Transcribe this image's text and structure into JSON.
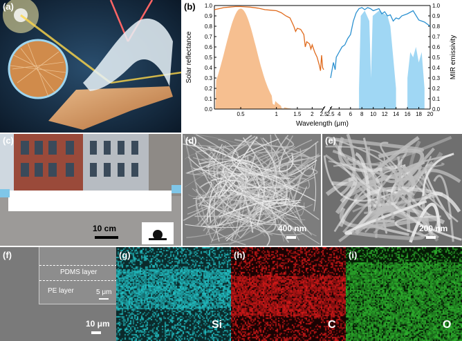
{
  "figure": {
    "panels": {
      "a": {
        "label": "(a)"
      },
      "b": {
        "label": "(b)"
      },
      "c": {
        "label": "(c)",
        "scale_bar": "10 cm"
      },
      "d": {
        "label": "(d)",
        "scale_bar": "400 nm"
      },
      "e": {
        "label": "(e)",
        "scale_bar": "200 nm"
      },
      "f": {
        "label": "(f)",
        "scale_bar": "10 μm",
        "inset": {
          "top_layer": "PDMS layer",
          "bottom_layer": "PE layer",
          "inset_scale": "5 μm"
        }
      },
      "g": {
        "label": "(g)",
        "element": "Si",
        "color": "#23c4c8"
      },
      "h": {
        "label": "(h)",
        "element": "C",
        "color": "#d91a1a"
      },
      "i": {
        "label": "(i)",
        "element": "O",
        "color": "#2fb52f"
      }
    }
  },
  "chart_data": {
    "type": "line",
    "xlabel": "Wavelength (μm)",
    "ylabel_left": "Solar reflectance",
    "ylabel_right": "MIR emissivity",
    "ylim": [
      0,
      1.0
    ],
    "x_ticks_left": [
      "0.5",
      "1",
      "1.5",
      "2",
      "2.5"
    ],
    "x_ticks_right": [
      "2.5",
      "4",
      "6",
      "8",
      "10",
      "12",
      "14",
      "16",
      "18",
      "20"
    ],
    "y_ticks": [
      "0.0",
      "0.1",
      "0.2",
      "0.3",
      "0.4",
      "0.5",
      "0.6",
      "0.7",
      "0.8",
      "0.9",
      "1.0"
    ],
    "colors": {
      "reflectance": "#e06a1c",
      "solar_fill": "#f5b47c",
      "emissivity": "#2a90d0",
      "window_fill": "#8fd0f2"
    },
    "series": [
      {
        "role": "reflectance",
        "x": [
          0.3,
          0.33,
          0.36,
          0.4,
          0.45,
          0.5,
          0.6,
          0.7,
          0.8,
          0.9,
          1.0,
          1.1,
          1.2,
          1.3,
          1.4,
          1.45,
          1.5,
          1.6,
          1.7,
          1.75,
          1.8,
          1.9,
          1.95,
          2.0,
          2.1,
          2.2,
          2.3,
          2.35,
          2.4,
          2.45,
          2.5
        ],
        "y": [
          0.96,
          0.97,
          0.98,
          0.985,
          0.99,
          0.99,
          0.985,
          0.975,
          0.96,
          0.955,
          0.95,
          0.93,
          0.9,
          0.88,
          0.8,
          0.75,
          0.78,
          0.77,
          0.72,
          0.6,
          0.65,
          0.63,
          0.58,
          0.62,
          0.55,
          0.5,
          0.42,
          0.37,
          0.52,
          0.4,
          0.38
        ]
      },
      {
        "role": "emissivity",
        "x": [
          2.5,
          3.0,
          3.3,
          3.5,
          4.0,
          4.5,
          5.0,
          5.5,
          6.0,
          6.5,
          7.0,
          7.5,
          8.0,
          8.5,
          9.0,
          9.5,
          10.0,
          10.5,
          11.0,
          11.5,
          12.0,
          12.5,
          13.0,
          13.5,
          14.0,
          14.5,
          15.0,
          16.0,
          17.0,
          18.0,
          19.0,
          20.0
        ],
        "y": [
          0.3,
          0.45,
          0.38,
          0.5,
          0.55,
          0.6,
          0.62,
          0.68,
          0.72,
          0.85,
          0.93,
          0.97,
          0.98,
          0.96,
          0.98,
          0.97,
          0.95,
          0.96,
          0.97,
          0.92,
          0.94,
          0.9,
          0.91,
          0.85,
          0.88,
          0.87,
          0.9,
          0.92,
          0.95,
          0.86,
          0.84,
          0.8
        ]
      }
    ]
  }
}
